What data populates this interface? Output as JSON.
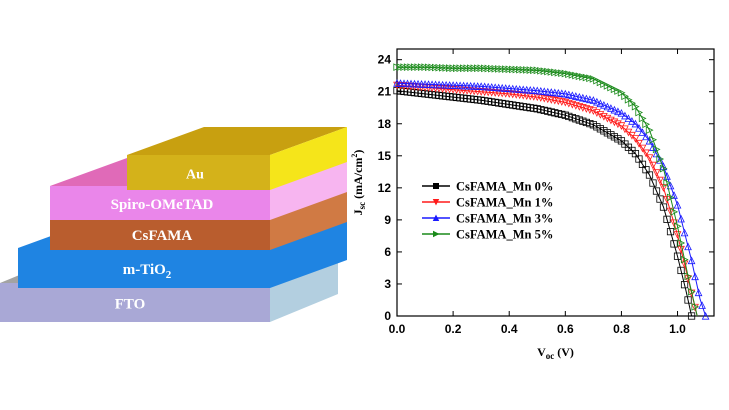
{
  "device_stack": {
    "layers": [
      {
        "name": "FTO",
        "front": "#a9a8d6",
        "top": "#a3a3a3",
        "side": "#b3cfe0"
      },
      {
        "name": "m-TiO",
        "subscript": "2",
        "front": "#1f84e2",
        "top": "#1f84e2",
        "side": "#1f84e2"
      },
      {
        "name": "CsFAMA",
        "front": "#b95d2e",
        "top": "#b95d2e",
        "side": "#d07a44"
      },
      {
        "name": "Spiro-OMeTAD",
        "front": "#ea86ea",
        "top": "#e06ab8",
        "side": "#f7b5f0"
      },
      {
        "name": "Au",
        "front": "#d4b21a",
        "top": "#c8a010",
        "side": "#f5e51a"
      }
    ]
  },
  "chart_data": {
    "type": "line",
    "xlabel": "V",
    "xlabel_sub": "oc",
    "xlabel_unit": " (V)",
    "ylabel": "J",
    "ylabel_sub": "sc",
    "ylabel_unit": " (mA/cm",
    "ylabel_sup": "2",
    "ylabel_close": ")",
    "xlim": [
      0.0,
      1.13
    ],
    "ylim": [
      0,
      25
    ],
    "xticks": [
      "0.0",
      "0.2",
      "0.4",
      "0.6",
      "0.8",
      "1.0"
    ],
    "yticks": [
      "0",
      "3",
      "6",
      "9",
      "12",
      "15",
      "18",
      "21",
      "24"
    ],
    "legend_position": "center-left",
    "series": [
      {
        "name": "CsFAMA_Mn 0%",
        "color": "#000000",
        "marker": "square",
        "jsc": 21.1,
        "voc": 1.05,
        "slope": 4.0,
        "pts": [
          [
            0,
            21.1
          ],
          [
            0.1,
            20.8
          ],
          [
            0.2,
            20.5
          ],
          [
            0.3,
            20.2
          ],
          [
            0.4,
            19.8
          ],
          [
            0.5,
            19.4
          ],
          [
            0.6,
            18.8
          ],
          [
            0.7,
            17.9
          ],
          [
            0.8,
            16.4
          ],
          [
            0.85,
            15.2
          ],
          [
            0.9,
            13.2
          ],
          [
            0.95,
            10.2
          ],
          [
            1.0,
            5.6
          ],
          [
            1.03,
            2.4
          ],
          [
            1.05,
            0
          ]
        ]
      },
      {
        "name": "CsFAMA_Mn 1%",
        "color": "#ff1a1a",
        "marker": "triangle-down",
        "pts": [
          [
            0,
            21.6
          ],
          [
            0.1,
            21.4
          ],
          [
            0.2,
            21.2
          ],
          [
            0.3,
            21.0
          ],
          [
            0.4,
            20.8
          ],
          [
            0.5,
            20.5
          ],
          [
            0.6,
            20.0
          ],
          [
            0.7,
            19.2
          ],
          [
            0.8,
            17.8
          ],
          [
            0.85,
            16.6
          ],
          [
            0.9,
            14.8
          ],
          [
            0.95,
            12.0
          ],
          [
            1.0,
            7.6
          ],
          [
            1.04,
            3.2
          ],
          [
            1.07,
            0
          ]
        ]
      },
      {
        "name": "CsFAMA_Mn 3%",
        "color": "#1a1aff",
        "marker": "triangle-up",
        "pts": [
          [
            0,
            21.8
          ],
          [
            0.1,
            21.7
          ],
          [
            0.2,
            21.6
          ],
          [
            0.3,
            21.5
          ],
          [
            0.4,
            21.3
          ],
          [
            0.5,
            21.1
          ],
          [
            0.6,
            20.8
          ],
          [
            0.7,
            20.2
          ],
          [
            0.8,
            19.0
          ],
          [
            0.85,
            18.0
          ],
          [
            0.9,
            16.4
          ],
          [
            0.95,
            14.0
          ],
          [
            1.0,
            10.4
          ],
          [
            1.05,
            5.2
          ],
          [
            1.08,
            1.6
          ],
          [
            1.1,
            0
          ]
        ]
      },
      {
        "name": "CsFAMA_Mn 5%",
        "color": "#1a8a1a",
        "marker": "triangle-right",
        "pts": [
          [
            0,
            23.3
          ],
          [
            0.1,
            23.3
          ],
          [
            0.2,
            23.2
          ],
          [
            0.3,
            23.2
          ],
          [
            0.4,
            23.1
          ],
          [
            0.5,
            23.0
          ],
          [
            0.6,
            22.7
          ],
          [
            0.7,
            22.2
          ],
          [
            0.8,
            20.9
          ],
          [
            0.85,
            19.6
          ],
          [
            0.9,
            17.4
          ],
          [
            0.95,
            13.8
          ],
          [
            1.0,
            8.4
          ],
          [
            1.04,
            3.4
          ],
          [
            1.07,
            0
          ]
        ]
      }
    ]
  }
}
